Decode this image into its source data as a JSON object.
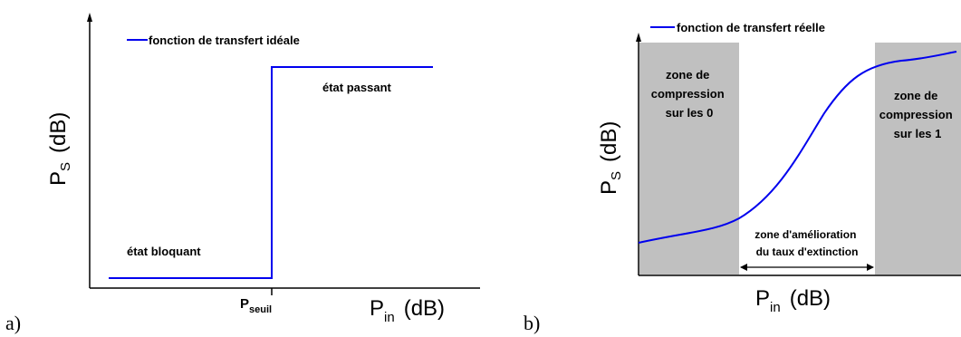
{
  "panel_a": {
    "panel_label": "a)",
    "legend_label": "fonction de transfert idéale",
    "y_axis": {
      "main": "P",
      "sub": "S",
      "unit": "(dB)"
    },
    "x_axis": {
      "main": "P",
      "sub": "in",
      "unit": "(dB)"
    },
    "threshold": {
      "main": "P",
      "sub": "seuil"
    },
    "state_on": "état passant",
    "state_off": "état bloquant"
  },
  "panel_b": {
    "panel_label": "b)",
    "legend_label": "fonction de transfert réelle",
    "y_axis": {
      "main": "P",
      "sub": "S",
      "unit": "(dB)"
    },
    "x_axis": {
      "main": "P",
      "sub": "in",
      "unit": "(dB)"
    },
    "zone_left": [
      "zone de",
      "compression",
      "sur les 0"
    ],
    "zone_right": [
      "zone de",
      "compression",
      "sur les 1"
    ],
    "improvement": [
      "zone d'amélioration",
      "du taux d'extinction"
    ]
  },
  "colors": {
    "curve": "#0000ee",
    "axis": "#000000",
    "zone_fill": "#c0c0c0"
  }
}
